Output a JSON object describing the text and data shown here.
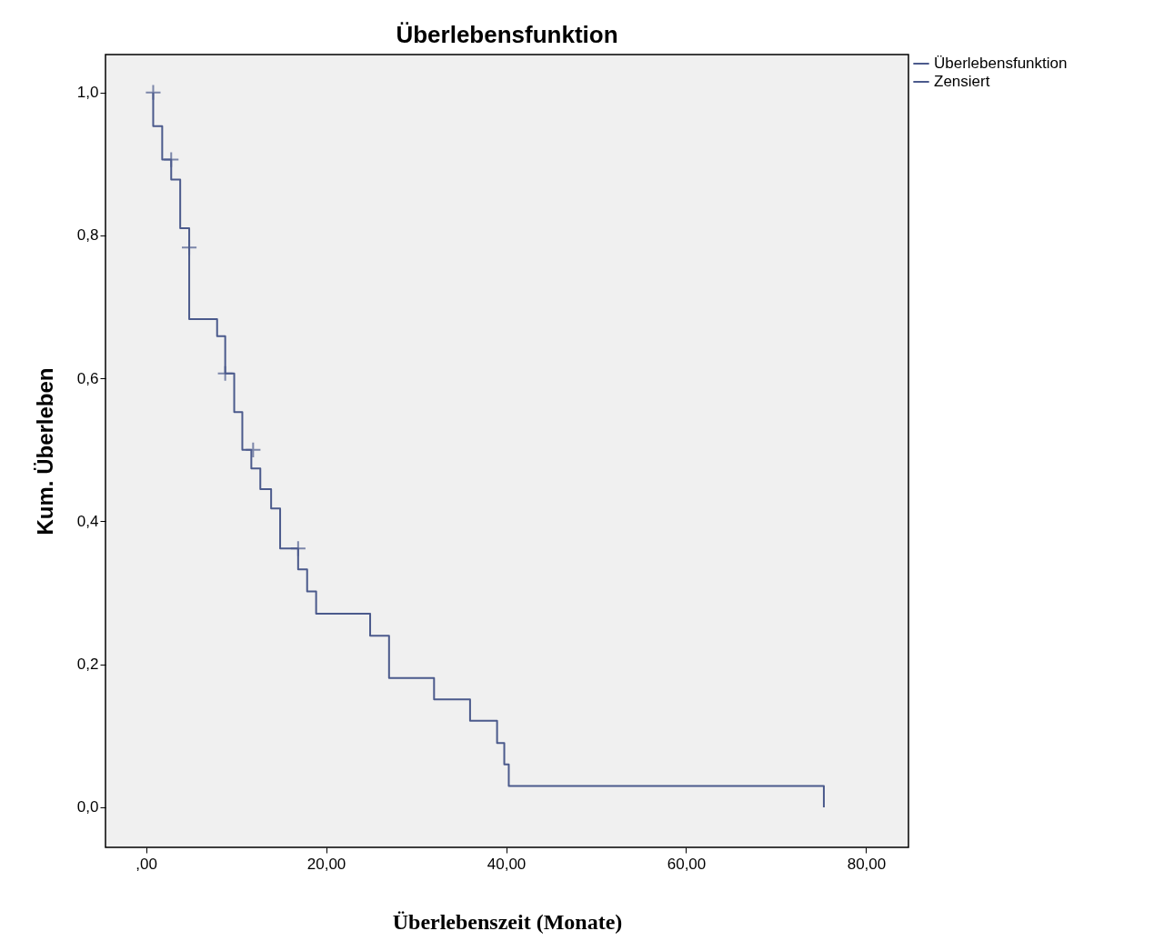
{
  "chart_data": {
    "type": "step",
    "title": "Überlebensfunktion",
    "xlabel": "Überlebenszeit (Monate)",
    "ylabel": "Kum. Überleben",
    "xlim": [
      -4.5,
      84.7
    ],
    "ylim": [
      -0.056,
      1.053
    ],
    "xticks": [
      {
        "value": 0,
        "label": ",00"
      },
      {
        "value": 20,
        "label": "20,00"
      },
      {
        "value": 40,
        "label": "40,00"
      },
      {
        "value": 60,
        "label": "60,00"
      },
      {
        "value": 80,
        "label": "80,00"
      }
    ],
    "yticks": [
      {
        "value": 0,
        "label": "0,0"
      },
      {
        "value": 0.2,
        "label": "0,2"
      },
      {
        "value": 0.4,
        "label": "0,4"
      },
      {
        "value": 0.6,
        "label": "0,6"
      },
      {
        "value": 0.8,
        "label": "0,8"
      },
      {
        "value": 1,
        "label": "1,0"
      }
    ],
    "grid": false,
    "legend": "top right",
    "series": [
      {
        "name": "Überlebensfunktion",
        "color": "#4b5a8c",
        "x": [
          0.8,
          0.8,
          1.8,
          2.8,
          3.8,
          4.8,
          7.9,
          8.8,
          9.8,
          10.7,
          11.7,
          12.7,
          13.9,
          14.9,
          16.9,
          17.9,
          18.9,
          24.9,
          27.0,
          32.0,
          36.0,
          39.0,
          39.8,
          40.3,
          75.3
        ],
        "values": [
          1.0,
          0.953,
          0.906,
          0.878,
          0.81,
          0.683,
          0.659,
          0.607,
          0.553,
          0.5,
          0.474,
          0.445,
          0.418,
          0.362,
          0.333,
          0.302,
          0.271,
          0.24,
          0.181,
          0.151,
          0.121,
          0.09,
          0.06,
          0.03,
          0.0
        ]
      },
      {
        "name": "Zensiert",
        "type": "scatter",
        "marker": "cross",
        "color": "#4b5a8c",
        "x": [
          0.8,
          2.8,
          4.8,
          8.8,
          11.9,
          16.9
        ],
        "values": [
          1.0,
          0.906,
          0.783,
          0.607,
          0.5,
          0.362
        ]
      }
    ]
  }
}
